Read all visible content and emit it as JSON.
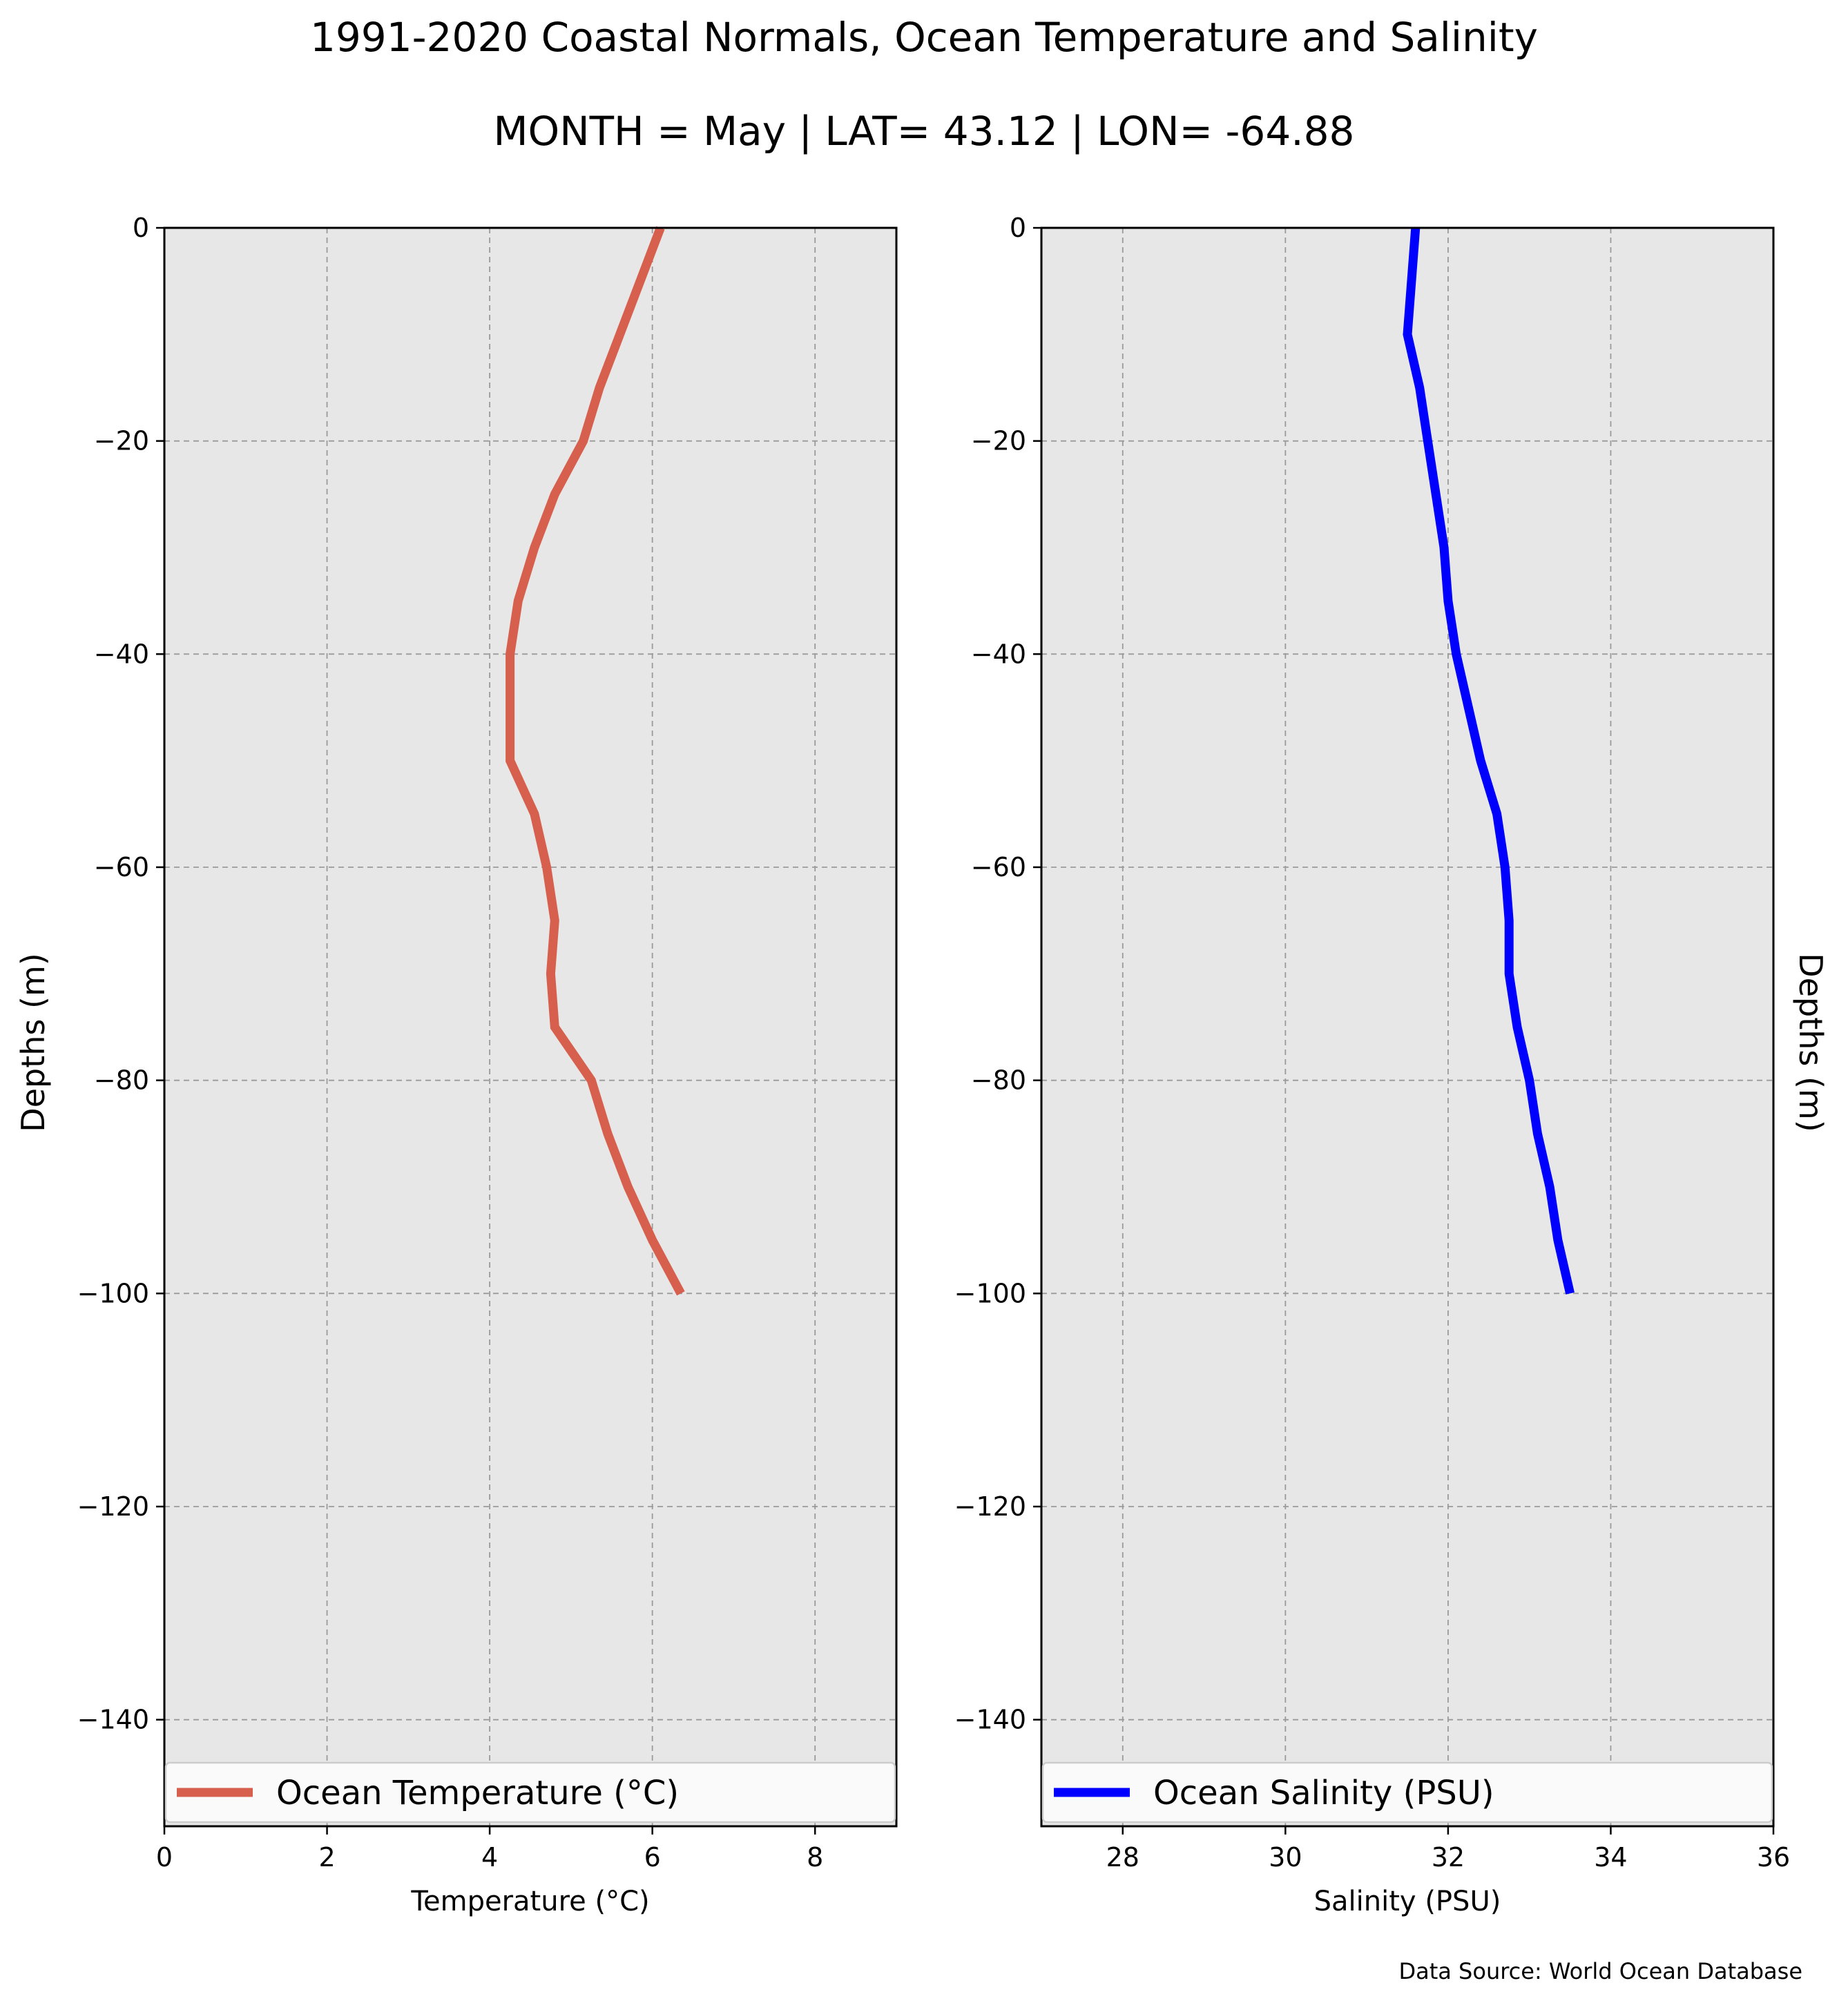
{
  "title": "1991-2020 Coastal Normals, Ocean Temperature and Salinity",
  "subtitle": "MONTH = May | LAT= 43.12 | LON= -64.88",
  "source": "Data Source: World Ocean Database",
  "chart_data": [
    {
      "type": "line",
      "xlabel": "Temperature (°C)",
      "ylabel": "Depths (m)",
      "xlim": [
        0,
        9
      ],
      "ylim": [
        -150,
        0
      ],
      "x_ticks": [
        0,
        2,
        4,
        6,
        8
      ],
      "x_tick_labels": [
        "0",
        "2",
        "4",
        "6",
        "8"
      ],
      "y_ticks": [
        0,
        -20,
        -40,
        -60,
        -80,
        -100,
        -120,
        -140
      ],
      "y_tick_labels": [
        "0",
        "−20",
        "−40",
        "−60",
        "−80",
        "−100",
        "−120",
        "−140"
      ],
      "grid": true,
      "legend_position": "bottom",
      "series": [
        {
          "name": "Ocean Temperature (°C)",
          "color": "#d6604d",
          "x": [
            6.1,
            5.85,
            5.6,
            5.35,
            5.15,
            4.8,
            4.55,
            4.35,
            4.25,
            4.25,
            4.25,
            4.55,
            4.7,
            4.8,
            4.75,
            4.8,
            5.25,
            5.45,
            5.7,
            6.0,
            6.35
          ],
          "y": [
            0,
            -5,
            -10,
            -15,
            -20,
            -25,
            -30,
            -35,
            -40,
            -45,
            -50,
            -55,
            -60,
            -65,
            -70,
            -75,
            -80,
            -85,
            -90,
            -95,
            -100
          ]
        }
      ]
    },
    {
      "type": "line",
      "xlabel": "Salinity (PSU)",
      "ylabel": "Depths (m)",
      "xlim": [
        27,
        36
      ],
      "ylim": [
        -150,
        0
      ],
      "x_ticks": [
        28,
        30,
        32,
        34,
        36
      ],
      "x_tick_labels": [
        "28",
        "30",
        "32",
        "34",
        "36"
      ],
      "y_ticks": [
        0,
        -20,
        -40,
        -60,
        -80,
        -100,
        -120,
        -140
      ],
      "y_tick_labels": [
        "0",
        "−20",
        "−40",
        "−60",
        "−80",
        "−100",
        "−120",
        "−140"
      ],
      "grid": true,
      "legend_position": "bottom",
      "series": [
        {
          "name": "Ocean Salinity (PSU)",
          "color": "#0000ff",
          "x": [
            31.6,
            31.55,
            31.5,
            31.65,
            31.75,
            31.85,
            31.95,
            32.0,
            32.1,
            32.25,
            32.4,
            32.6,
            32.7,
            32.75,
            32.75,
            32.85,
            33.0,
            33.1,
            33.25,
            33.35,
            33.5
          ],
          "y": [
            0,
            -5,
            -10,
            -15,
            -20,
            -25,
            -30,
            -35,
            -40,
            -45,
            -50,
            -55,
            -60,
            -65,
            -70,
            -75,
            -80,
            -85,
            -90,
            -95,
            -100
          ]
        }
      ]
    }
  ]
}
